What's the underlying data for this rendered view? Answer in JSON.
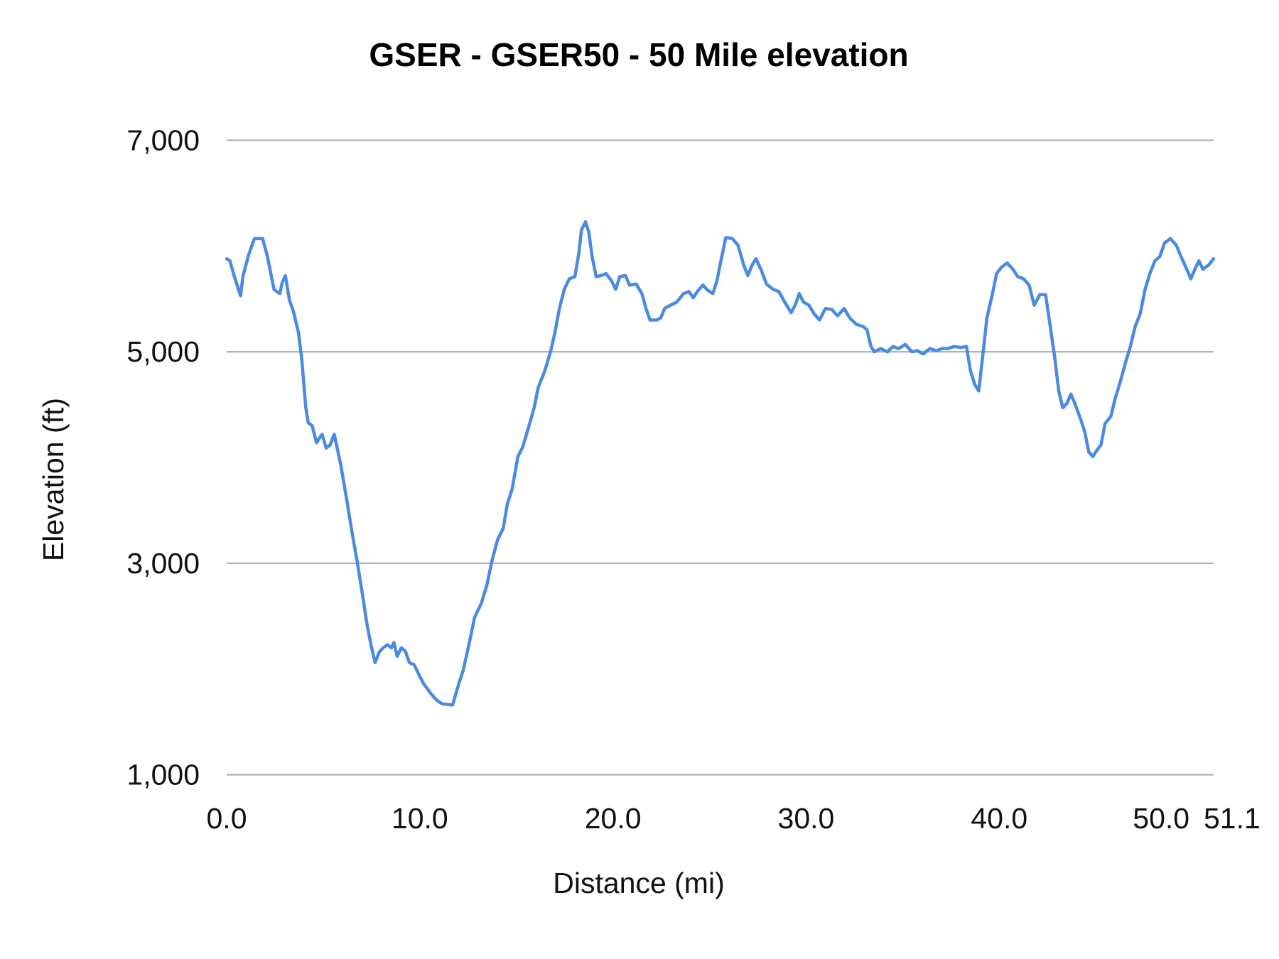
{
  "chart_data": {
    "type": "line",
    "title": "GSER - GSER50 - 50 Mile elevation",
    "xlabel": "Distance (mi)",
    "ylabel": "Elevation (ft)",
    "xlim": [
      0,
      51.1
    ],
    "ylim": [
      1000,
      7000
    ],
    "x_ticks": [
      0,
      10,
      20,
      30,
      40,
      50,
      51.1
    ],
    "x_tick_labels": [
      "0.0",
      "10.0",
      "20.0",
      "30.0",
      "40.0",
      "50.0",
      "51.1"
    ],
    "y_ticks": [
      1000,
      3000,
      5000,
      7000
    ],
    "y_tick_labels": [
      "1,000",
      "3,000",
      "5,000",
      "7,000"
    ],
    "grid": "horizontal",
    "legend": "none",
    "line_color": "#4a8ae0",
    "grid_color": "#b3b3b3",
    "series": [
      {
        "x": [
          0,
          0.17,
          0.4,
          0.72,
          0.84,
          1.14,
          1.44,
          1.86,
          2.11,
          2.45,
          2.75,
          2.87,
          3.04,
          3.25,
          3.46,
          3.72,
          3.89,
          4.1,
          4.22,
          4.43,
          4.65,
          4.94,
          5.15,
          5.36,
          5.57,
          5.91,
          6.2,
          6.5,
          6.76,
          7.0,
          7.26,
          7.47,
          7.68,
          7.9,
          8.1,
          8.32,
          8.53,
          8.66,
          8.83,
          9.04,
          9.25,
          9.46,
          9.71,
          9.97,
          10.2,
          10.56,
          10.85,
          11.15,
          11.7,
          12.0,
          12.25,
          12.54,
          12.84,
          13.18,
          13.47,
          13.72,
          14.02,
          14.32,
          14.53,
          14.78,
          15.08,
          15.33,
          15.62,
          15.92,
          16.13,
          16.47,
          16.77,
          16.98,
          17.23,
          17.48,
          17.74,
          18.03,
          18.24,
          18.37,
          18.58,
          18.75,
          18.92,
          19.13,
          19.38,
          19.64,
          19.93,
          20.14,
          20.35,
          20.65,
          20.86,
          21.2,
          21.5,
          21.71,
          21.92,
          22.26,
          22.47,
          22.68,
          22.97,
          23.31,
          23.65,
          23.94,
          24.16,
          24.37,
          24.66,
          24.92,
          25.17,
          25.38,
          25.59,
          25.84,
          26.18,
          26.47,
          26.77,
          26.98,
          27.2,
          27.4,
          27.66,
          27.95,
          28.29,
          28.59,
          28.89,
          29.22,
          29.43,
          29.65,
          29.86,
          30.15,
          30.41,
          30.7,
          31.0,
          31.33,
          31.63,
          31.97,
          32.26,
          32.6,
          32.94,
          33.15,
          33.36,
          33.53,
          33.87,
          34.21,
          34.5,
          34.8,
          35.14,
          35.47,
          35.77,
          36.06,
          36.4,
          36.74,
          37.04,
          37.33,
          37.67,
          38.01,
          38.3,
          38.51,
          38.73,
          38.94,
          39.15,
          39.36,
          39.65,
          39.86,
          40.12,
          40.41,
          40.71,
          40.96,
          41.26,
          41.55,
          41.81,
          42.1,
          42.4,
          42.61,
          42.87,
          43.08,
          43.29,
          43.5,
          43.71,
          43.92,
          44.22,
          44.43,
          44.64,
          44.85,
          45.06,
          45.27,
          45.48,
          45.78,
          45.99,
          46.24,
          46.54,
          46.79,
          47.04,
          47.3,
          47.55,
          47.8,
          48.06,
          48.31,
          48.56,
          48.86,
          49.16,
          49.41,
          49.71,
          49.92,
          50.13,
          50.34,
          50.55,
          50.84,
          51.1
        ],
        "y": [
          5880,
          5860,
          5710,
          5530,
          5710,
          5920,
          6070,
          6070,
          5900,
          5590,
          5550,
          5650,
          5720,
          5490,
          5380,
          5180,
          4930,
          4470,
          4330,
          4300,
          4140,
          4220,
          4090,
          4120,
          4220,
          3930,
          3620,
          3280,
          3010,
          2740,
          2430,
          2230,
          2060,
          2160,
          2200,
          2230,
          2200,
          2250,
          2120,
          2200,
          2170,
          2060,
          2040,
          1940,
          1860,
          1770,
          1710,
          1670,
          1660,
          1850,
          1990,
          2230,
          2490,
          2620,
          2790,
          3010,
          3220,
          3330,
          3560,
          3700,
          4010,
          4100,
          4280,
          4470,
          4660,
          4820,
          5000,
          5170,
          5410,
          5590,
          5690,
          5710,
          5940,
          6150,
          6230,
          6130,
          5900,
          5710,
          5720,
          5740,
          5670,
          5590,
          5710,
          5720,
          5630,
          5640,
          5550,
          5410,
          5300,
          5300,
          5320,
          5410,
          5440,
          5470,
          5550,
          5570,
          5510,
          5570,
          5630,
          5580,
          5550,
          5670,
          5860,
          6080,
          6070,
          6010,
          5820,
          5720,
          5820,
          5880,
          5780,
          5640,
          5590,
          5570,
          5470,
          5370,
          5440,
          5550,
          5470,
          5440,
          5360,
          5300,
          5410,
          5400,
          5340,
          5410,
          5320,
          5260,
          5240,
          5210,
          5050,
          5000,
          5030,
          5000,
          5050,
          5030,
          5070,
          5000,
          5010,
          4980,
          5030,
          5010,
          5030,
          5030,
          5050,
          5040,
          5050,
          4820,
          4690,
          4630,
          4970,
          5320,
          5550,
          5740,
          5800,
          5840,
          5780,
          5710,
          5690,
          5630,
          5440,
          5540,
          5540,
          5280,
          4950,
          4630,
          4470,
          4510,
          4600,
          4510,
          4360,
          4240,
          4050,
          4010,
          4070,
          4120,
          4320,
          4390,
          4550,
          4700,
          4900,
          5050,
          5240,
          5360,
          5590,
          5740,
          5860,
          5900,
          6030,
          6070,
          6010,
          5900,
          5780,
          5690,
          5780,
          5860,
          5780,
          5820,
          5880
        ]
      }
    ]
  }
}
